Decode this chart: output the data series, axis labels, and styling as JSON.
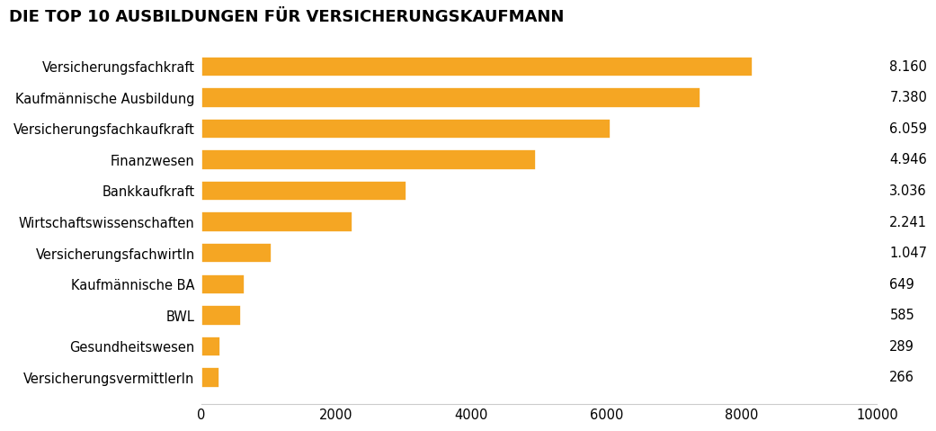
{
  "title": "DIE TOP 10 AUSBILDUNGEN FÜR VERSICHERUNGSKAUFMANN",
  "categories": [
    "VersicherungsvermittlerIn",
    "Gesundheitswesen",
    "BWL",
    "Kaufmännische BA",
    "VersicherungsfachwirtIn",
    "Wirtschaftswissenschaften",
    "Bankkaufkraft",
    "Finanzwesen",
    "Versicherungsfachkaufkraft",
    "Kaufmännische Ausbildung",
    "Versicherungsfachkraft"
  ],
  "values": [
    266,
    289,
    585,
    649,
    1047,
    2241,
    3036,
    4946,
    6059,
    7380,
    8160
  ],
  "labels": [
    "266",
    "289",
    "585",
    "649",
    "1.047",
    "2.241",
    "3.036",
    "4.946",
    "6.059",
    "7.380",
    "8.160"
  ],
  "bar_color": "#F5A623",
  "background_color": "#FFFFFF",
  "xlim": [
    0,
    10000
  ],
  "xticks": [
    0,
    2000,
    4000,
    6000,
    8000,
    10000
  ],
  "xtick_labels": [
    "0",
    "2000",
    "4000",
    "6000",
    "8000",
    "10000"
  ],
  "title_fontsize": 13,
  "label_fontsize": 10.5,
  "value_fontsize": 10.5
}
